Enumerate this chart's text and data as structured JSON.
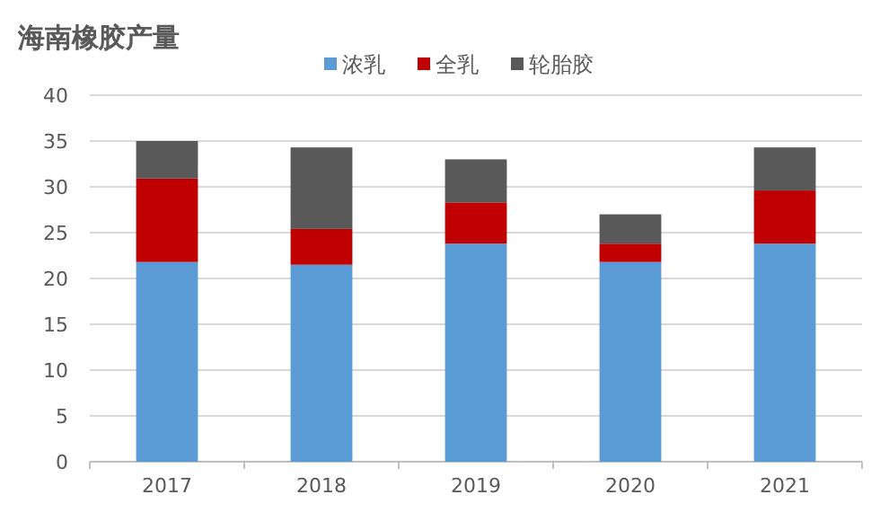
{
  "chart_data": {
    "type": "bar",
    "stacked": true,
    "title": "海南橡胶产量",
    "categories": [
      "2017",
      "2018",
      "2019",
      "2020",
      "2021"
    ],
    "series": [
      {
        "name": "浓乳",
        "color": "#5b9bd5",
        "values": [
          21.8,
          21.5,
          23.8,
          21.8,
          23.8
        ]
      },
      {
        "name": "全乳",
        "color": "#c00000",
        "values": [
          9.1,
          3.9,
          4.5,
          2,
          5.8
        ]
      },
      {
        "name": "轮胎胶",
        "color": "#595959",
        "values": [
          4.1,
          8.9,
          4.7,
          3.2,
          4.7
        ]
      }
    ],
    "ylim": [
      0,
      40
    ],
    "yticks": [
      0,
      5,
      10,
      15,
      20,
      25,
      30,
      35,
      40
    ],
    "grid": "y",
    "legend": "top"
  }
}
